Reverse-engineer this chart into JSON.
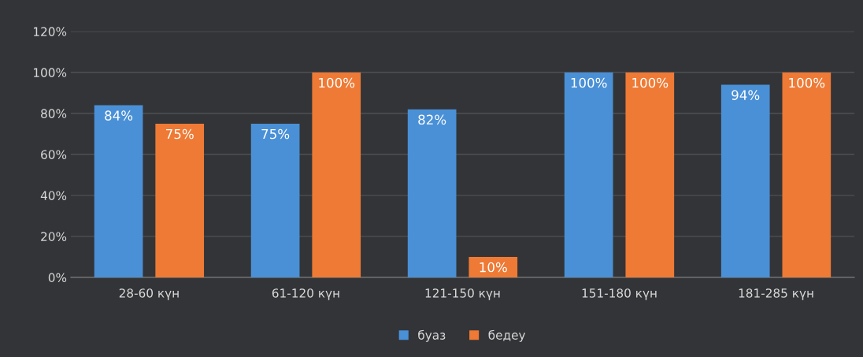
{
  "chart_data": {
    "type": "bar",
    "categories": [
      "28-60 күн",
      "61-120 күн",
      "121-150 күн",
      "151-180 күн",
      "181-285 күн"
    ],
    "series": [
      {
        "name": "буаз",
        "color": "#4a90d6",
        "values": [
          84,
          75,
          82,
          100,
          94
        ],
        "value_labels": [
          "84%",
          "75%",
          "82%",
          "100%",
          "94%"
        ]
      },
      {
        "name": "бедеу",
        "color": "#ee7a35",
        "values": [
          75,
          100,
          10,
          100,
          100
        ],
        "value_labels": [
          "75%",
          "100%",
          "10%",
          "100%",
          "100%"
        ]
      }
    ],
    "ylim": [
      0,
      120
    ],
    "yticks": [
      {
        "value": 0,
        "label": "0%"
      },
      {
        "value": 20,
        "label": "20%"
      },
      {
        "value": 40,
        "label": "40%"
      },
      {
        "value": 60,
        "label": "60%"
      },
      {
        "value": 80,
        "label": "80%"
      },
      {
        "value": 100,
        "label": "100%"
      },
      {
        "value": 120,
        "label": "120%"
      }
    ],
    "grid": "y",
    "legend": "bottom"
  }
}
